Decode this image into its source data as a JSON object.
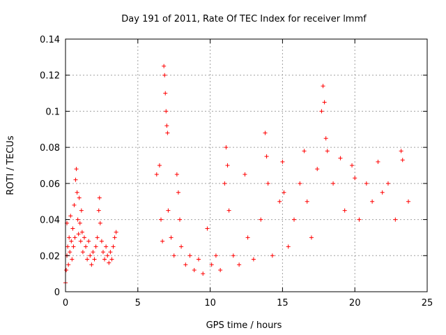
{
  "chart_data": {
    "type": "scatter",
    "title": "Day 191 of 2011, Rate Of TEC Index for receiver lmmf",
    "xlabel": "GPS time / hours",
    "ylabel": "ROTI / TECUs",
    "xlim": [
      0,
      25
    ],
    "ylim": [
      0,
      0.14
    ],
    "x_ticks": [
      0,
      5,
      10,
      15,
      20,
      25
    ],
    "x_tick_labels": [
      "0",
      "5",
      "10",
      "15",
      "20",
      "25"
    ],
    "y_ticks": [
      0,
      0.02,
      0.04,
      0.06,
      0.08,
      0.1,
      0.12,
      0.14
    ],
    "y_tick_labels": [
      "0",
      "0.02",
      "0.04",
      "0.06",
      "0.08",
      "0.1",
      "0.12",
      "0.14"
    ],
    "grid": true,
    "marker": "plus",
    "color": "#ff0000",
    "series": [
      {
        "points": [
          [
            0.0,
            0.005
          ],
          [
            0.05,
            0.012
          ],
          [
            0.1,
            0.02
          ],
          [
            0.1,
            0.038
          ],
          [
            0.15,
            0.025
          ],
          [
            0.2,
            0.015
          ],
          [
            0.25,
            0.03
          ],
          [
            0.3,
            0.022
          ],
          [
            0.35,
            0.042
          ],
          [
            0.4,
            0.028
          ],
          [
            0.45,
            0.018
          ],
          [
            0.5,
            0.035
          ],
          [
            0.55,
            0.025
          ],
          [
            0.6,
            0.048
          ],
          [
            0.65,
            0.03
          ],
          [
            0.7,
            0.062
          ],
          [
            0.75,
            0.068
          ],
          [
            0.8,
            0.055
          ],
          [
            0.85,
            0.04
          ],
          [
            0.9,
            0.032
          ],
          [
            0.95,
            0.052
          ],
          [
            1.0,
            0.038
          ],
          [
            1.05,
            0.028
          ],
          [
            1.1,
            0.045
          ],
          [
            1.15,
            0.033
          ],
          [
            1.2,
            0.022
          ],
          [
            1.3,
            0.03
          ],
          [
            1.4,
            0.025
          ],
          [
            1.5,
            0.018
          ],
          [
            1.6,
            0.028
          ],
          [
            1.7,
            0.02
          ],
          [
            1.8,
            0.015
          ],
          [
            1.9,
            0.022
          ],
          [
            2.0,
            0.018
          ],
          [
            2.1,
            0.025
          ],
          [
            2.2,
            0.03
          ],
          [
            2.3,
            0.045
          ],
          [
            2.35,
            0.052
          ],
          [
            2.4,
            0.038
          ],
          [
            2.5,
            0.028
          ],
          [
            2.6,
            0.022
          ],
          [
            2.7,
            0.018
          ],
          [
            2.8,
            0.025
          ],
          [
            2.9,
            0.02
          ],
          [
            3.0,
            0.016
          ],
          [
            3.1,
            0.022
          ],
          [
            3.2,
            0.018
          ],
          [
            3.3,
            0.025
          ],
          [
            3.4,
            0.03
          ],
          [
            3.5,
            0.033
          ],
          [
            6.3,
            0.065
          ],
          [
            6.5,
            0.07
          ],
          [
            6.6,
            0.04
          ],
          [
            6.7,
            0.028
          ],
          [
            6.8,
            0.125
          ],
          [
            6.85,
            0.12
          ],
          [
            6.9,
            0.11
          ],
          [
            6.95,
            0.1
          ],
          [
            7.0,
            0.092
          ],
          [
            7.05,
            0.088
          ],
          [
            7.1,
            0.045
          ],
          [
            7.3,
            0.03
          ],
          [
            7.5,
            0.02
          ],
          [
            7.7,
            0.065
          ],
          [
            7.8,
            0.055
          ],
          [
            7.9,
            0.04
          ],
          [
            8.0,
            0.025
          ],
          [
            8.3,
            0.015
          ],
          [
            8.6,
            0.02
          ],
          [
            8.9,
            0.012
          ],
          [
            9.2,
            0.018
          ],
          [
            9.5,
            0.01
          ],
          [
            9.8,
            0.035
          ],
          [
            10.1,
            0.015
          ],
          [
            10.4,
            0.02
          ],
          [
            10.7,
            0.012
          ],
          [
            11.0,
            0.06
          ],
          [
            11.1,
            0.08
          ],
          [
            11.2,
            0.07
          ],
          [
            11.3,
            0.045
          ],
          [
            11.6,
            0.02
          ],
          [
            12.0,
            0.015
          ],
          [
            12.4,
            0.065
          ],
          [
            12.6,
            0.03
          ],
          [
            13.0,
            0.018
          ],
          [
            13.5,
            0.04
          ],
          [
            13.8,
            0.088
          ],
          [
            13.9,
            0.075
          ],
          [
            14.0,
            0.06
          ],
          [
            14.3,
            0.02
          ],
          [
            14.8,
            0.05
          ],
          [
            15.0,
            0.072
          ],
          [
            15.1,
            0.055
          ],
          [
            15.4,
            0.025
          ],
          [
            15.8,
            0.04
          ],
          [
            16.2,
            0.06
          ],
          [
            16.5,
            0.078
          ],
          [
            16.7,
            0.05
          ],
          [
            17.0,
            0.03
          ],
          [
            17.4,
            0.068
          ],
          [
            17.7,
            0.1
          ],
          [
            17.8,
            0.114
          ],
          [
            17.9,
            0.105
          ],
          [
            18.0,
            0.085
          ],
          [
            18.1,
            0.078
          ],
          [
            18.5,
            0.06
          ],
          [
            19.0,
            0.074
          ],
          [
            19.3,
            0.045
          ],
          [
            19.8,
            0.07
          ],
          [
            20.0,
            0.063
          ],
          [
            20.3,
            0.04
          ],
          [
            20.8,
            0.06
          ],
          [
            21.2,
            0.05
          ],
          [
            21.6,
            0.072
          ],
          [
            21.9,
            0.055
          ],
          [
            22.3,
            0.06
          ],
          [
            22.8,
            0.04
          ],
          [
            23.2,
            0.078
          ],
          [
            23.3,
            0.073
          ],
          [
            23.7,
            0.05
          ]
        ]
      }
    ]
  }
}
